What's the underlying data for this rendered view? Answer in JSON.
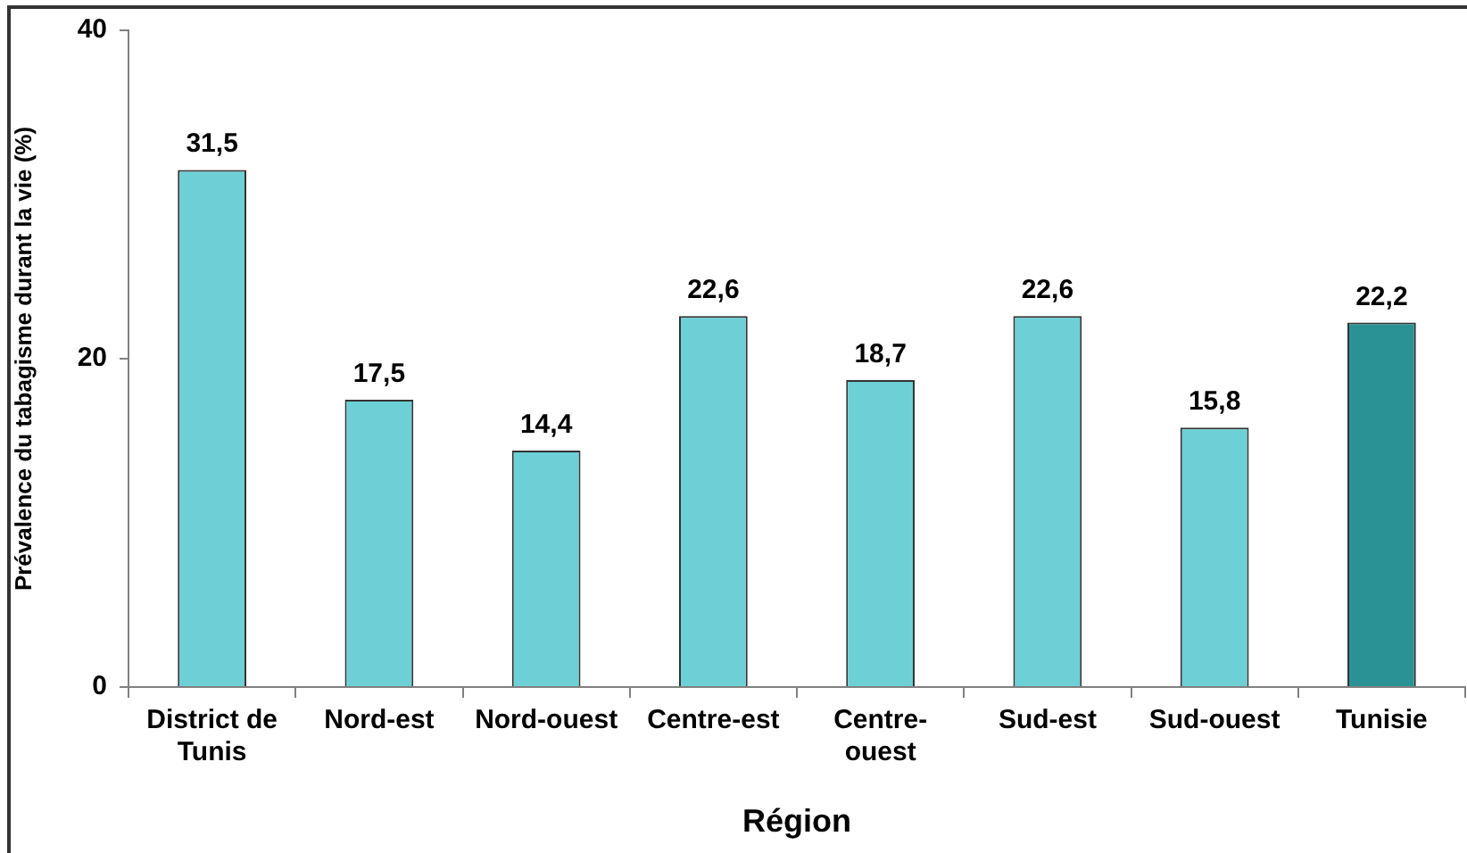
{
  "chart_data": {
    "type": "bar",
    "xlabel": "Région",
    "ylabel": "Prévalence du tabagisme durant la vie (%)",
    "categories": [
      "District de Tunis",
      "Nord-est",
      "Nord-ouest",
      "Centre-est",
      "Centre-ouest",
      "Sud-est",
      "Sud-ouest",
      "Tunisie"
    ],
    "values": [
      31.5,
      17.5,
      14.4,
      22.6,
      18.7,
      22.6,
      15.8,
      22.2
    ],
    "value_labels": [
      "31,5",
      "17,5",
      "14,4",
      "22,6",
      "18,7",
      "22,6",
      "15,8",
      "22,2"
    ],
    "colors": [
      "#6dd0d6",
      "#6dd0d6",
      "#6dd0d6",
      "#6dd0d6",
      "#6dd0d6",
      "#6dd0d6",
      "#6dd0d6",
      "#2a9294"
    ],
    "ylim": [
      0,
      40
    ],
    "yticks": [
      0,
      20,
      40
    ]
  }
}
